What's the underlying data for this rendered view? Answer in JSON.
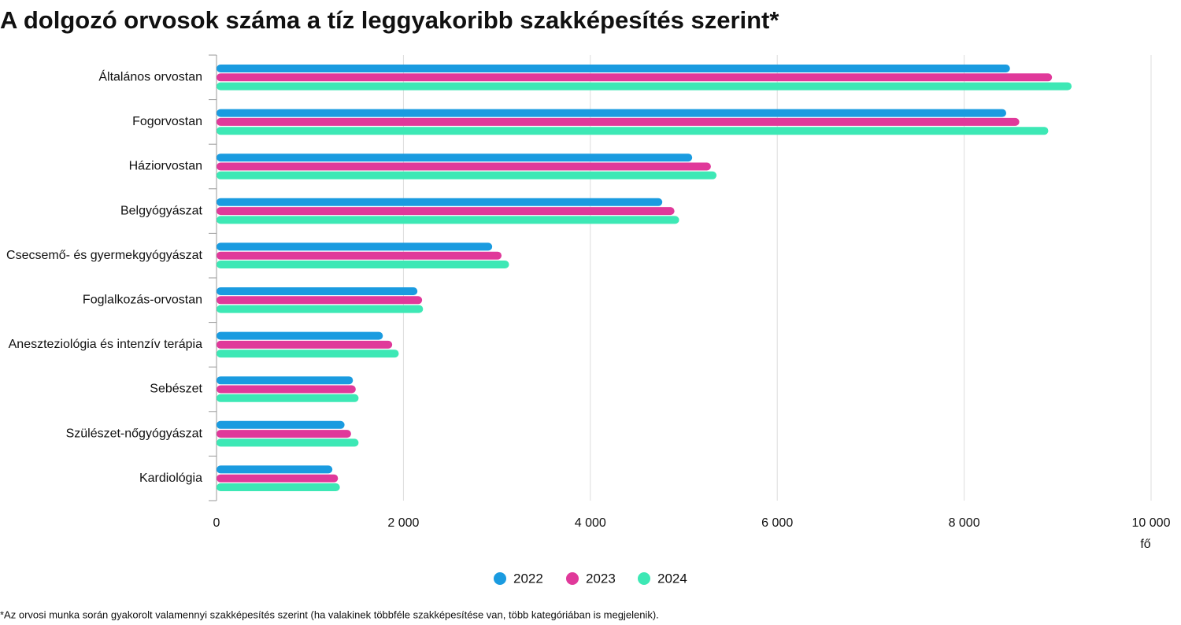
{
  "chart_data": {
    "type": "hbar",
    "title": "A dolgozó orvosok száma a tíz leggyakoribb szakképesítés szerint*",
    "x_label": "fő",
    "footnote": "*Az orvosi munka során gyakorolt valamennyi szakképesítés szerint (ha valakinek többféle szakképesítése van, több kategóriában is megjelenik).",
    "categories": [
      "Általános orvostan",
      "Fogorvostan",
      "Háziorvostan",
      "Belgyógyászat",
      "Csecsemő- és gyermekgyógyászat",
      "Foglalkozás-orvostan",
      "Aneszteziológia és intenzív terápia",
      "Sebészet",
      "Szülészet-nőgyógyászat",
      "Kardiológia"
    ],
    "series": [
      {
        "name": "2022",
        "color": "#1a9be0",
        "values": [
          8490,
          8450,
          5090,
          4770,
          2950,
          2150,
          1780,
          1460,
          1370,
          1240
        ]
      },
      {
        "name": "2023",
        "color": "#e0399a",
        "values": [
          8940,
          8590,
          5290,
          4900,
          3050,
          2200,
          1880,
          1490,
          1440,
          1300
        ]
      },
      {
        "name": "2024",
        "color": "#3de8b5",
        "values": [
          9150,
          8900,
          5350,
          4950,
          3130,
          2210,
          1950,
          1520,
          1520,
          1320
        ]
      }
    ],
    "xlim": [
      0,
      10000
    ],
    "xticks": [
      0,
      {
        "value": 2000,
        "label": "2 000"
      },
      {
        "value": 4000,
        "label": "4 000"
      },
      {
        "value": 6000,
        "label": "6 000"
      },
      {
        "value": 8000,
        "label": "8 000"
      },
      {
        "value": 10000,
        "label": "10 000"
      }
    ],
    "grid": true
  }
}
